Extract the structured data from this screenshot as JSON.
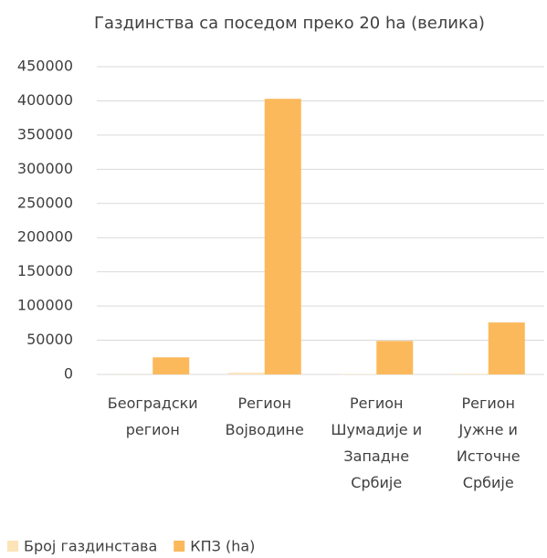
{
  "chart_data": {
    "type": "bar",
    "title": "Газдинства са поседом преко 20 ha (велика)",
    "categories": [
      "Београдски регион",
      "Регион Војводине",
      "Регион Шумадије и Западне Србије",
      "Регион Јужне и Источне Србије"
    ],
    "series": [
      {
        "name": "Број газдинстава",
        "color": "#fde3b8",
        "values": [
          300,
          2500,
          700,
          900
        ]
      },
      {
        "name": "КПЗ (ha)",
        "color": "#fbb95c",
        "values": [
          25000,
          403000,
          49000,
          76000
        ]
      }
    ],
    "ylim": [
      0,
      450000
    ],
    "yticks": [
      0,
      50000,
      100000,
      150000,
      200000,
      250000,
      300000,
      350000,
      400000,
      450000
    ],
    "grid": true,
    "legend": "bottom-left"
  }
}
